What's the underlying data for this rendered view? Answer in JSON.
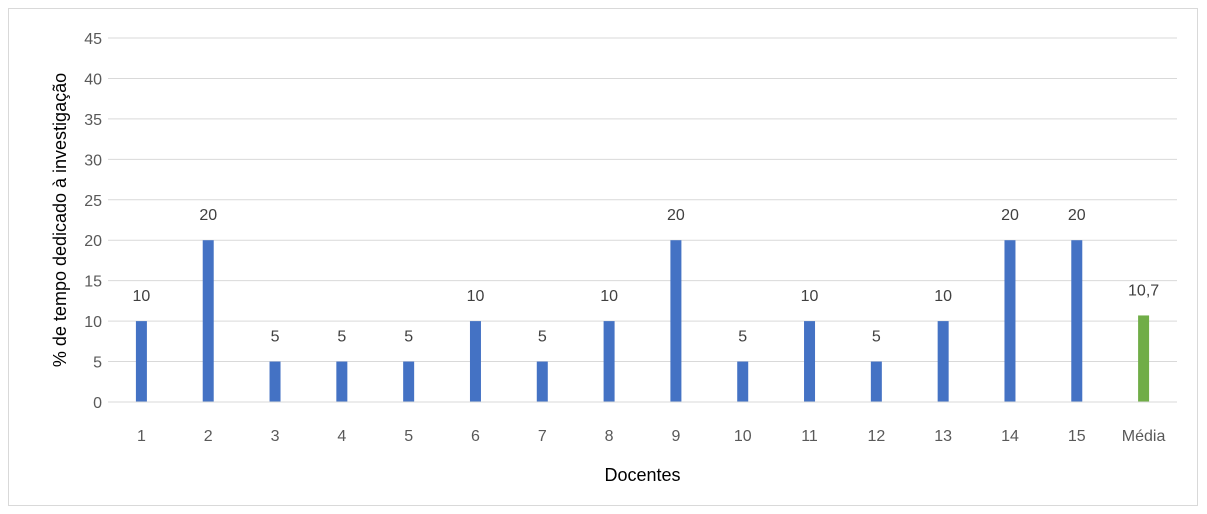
{
  "chart_data": {
    "type": "bar",
    "categories": [
      "1",
      "2",
      "3",
      "4",
      "5",
      "6",
      "7",
      "8",
      "9",
      "10",
      "11",
      "12",
      "13",
      "14",
      "15",
      "Média"
    ],
    "values": [
      10,
      20,
      5,
      5,
      5,
      10,
      5,
      10,
      20,
      5,
      10,
      5,
      10,
      20,
      20,
      10.7
    ],
    "data_labels": [
      "10",
      "20",
      "5",
      "5",
      "5",
      "10",
      "5",
      "10",
      "20",
      "5",
      "10",
      "5",
      "10",
      "20",
      "20",
      "10,7"
    ],
    "xlabel": "Docentes",
    "ylabel": "% de tempo dedicado à investigação",
    "ylim": [
      0,
      45
    ],
    "yticks": [
      0,
      5,
      10,
      15,
      20,
      25,
      30,
      35,
      40,
      45
    ],
    "grid": true,
    "legend": "none",
    "colors": {
      "default_bar": "#4472C4",
      "highlight_bar": "#70AD47",
      "highlight_category": "Média",
      "gridline": "#d9d9d9",
      "axis_line": "#d9d9d9"
    }
  }
}
